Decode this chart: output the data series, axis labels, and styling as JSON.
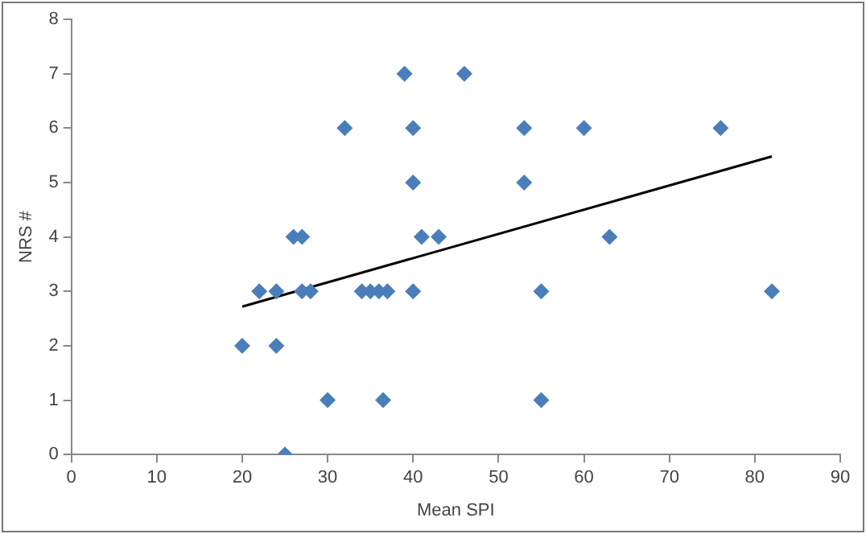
{
  "chart_data": {
    "type": "scatter",
    "xlabel": "Mean SPI",
    "ylabel": "NRS #",
    "xlim": [
      0,
      90
    ],
    "xticks": [
      0,
      10,
      20,
      30,
      40,
      50,
      60,
      70,
      80,
      90
    ],
    "ylim": [
      0,
      8
    ],
    "yticks": [
      0,
      1,
      2,
      3,
      4,
      5,
      6,
      7,
      8
    ],
    "grid": false,
    "legend": false,
    "marker": "diamond",
    "series": [
      {
        "color": "#4a7ebb",
        "x": [
          20,
          22,
          24,
          24,
          25,
          26,
          27,
          27,
          28,
          30,
          32,
          34,
          35,
          36,
          37,
          36.5,
          39,
          40,
          40,
          40,
          41,
          43,
          46,
          53,
          53,
          55,
          55,
          60,
          63,
          76,
          82
        ],
        "values": [
          2,
          3,
          3,
          2,
          0,
          4,
          4,
          3,
          3,
          1,
          6,
          3,
          3,
          3,
          3,
          1,
          7,
          6,
          5,
          3,
          4,
          4,
          7,
          6,
          5,
          3,
          1,
          6,
          4,
          6,
          3
        ]
      },
      {
        "type": "line",
        "color": "#000000",
        "marker": "none",
        "line_style": "solid",
        "x": [
          20,
          82
        ],
        "values": [
          2.72,
          5.48
        ]
      }
    ]
  }
}
